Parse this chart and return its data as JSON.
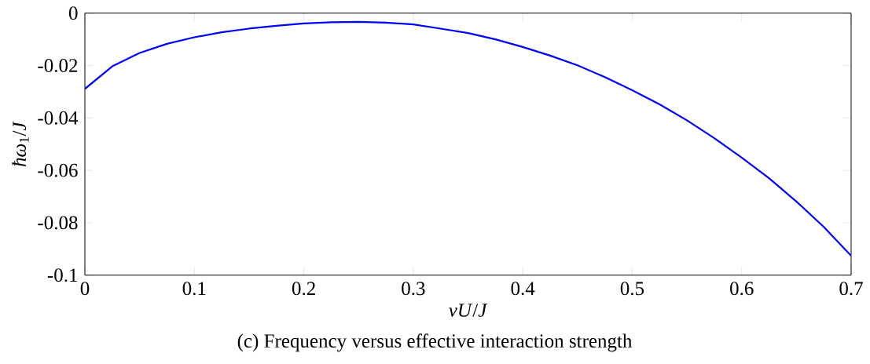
{
  "chart_data": {
    "type": "line",
    "xlabel": "*νU*/*J*",
    "ylabel": "*ħω*$_{1}$/*J*",
    "x": [
      0,
      0.025,
      0.05,
      0.075,
      0.1,
      0.125,
      0.15,
      0.175,
      0.2,
      0.225,
      0.25,
      0.275,
      0.3,
      0.325,
      0.35,
      0.375,
      0.4,
      0.425,
      0.45,
      0.475,
      0.5,
      0.525,
      0.55,
      0.575,
      0.6,
      0.625,
      0.65,
      0.675,
      0.7
    ],
    "series": [
      {
        "color": "#0000ff",
        "values": [
          -0.0289,
          -0.0203,
          -0.0152,
          -0.0117,
          -0.0092,
          -0.0073,
          -0.0059,
          -0.0048,
          -0.0039,
          -0.0035,
          -0.0033,
          -0.0036,
          -0.0043,
          -0.0059,
          -0.0076,
          -0.01,
          -0.0129,
          -0.0162,
          -0.0199,
          -0.0244,
          -0.0294,
          -0.0348,
          -0.0409,
          -0.0477,
          -0.0551,
          -0.063,
          -0.0719,
          -0.0816,
          -0.0926
        ]
      }
    ],
    "xlim": [
      0,
      0.7
    ],
    "ylim": [
      -0.1,
      0
    ],
    "xticks": [
      0,
      0.1,
      0.2,
      0.3,
      0.4,
      0.5,
      0.6,
      0.7
    ],
    "yticks": [
      -0.1,
      -0.08,
      -0.06,
      -0.04,
      -0.02,
      0
    ],
    "grid": false,
    "marker": "none",
    "line_style": "solid",
    "annotations": [
      "(c) Frequency versus effective interaction strength"
    ]
  }
}
